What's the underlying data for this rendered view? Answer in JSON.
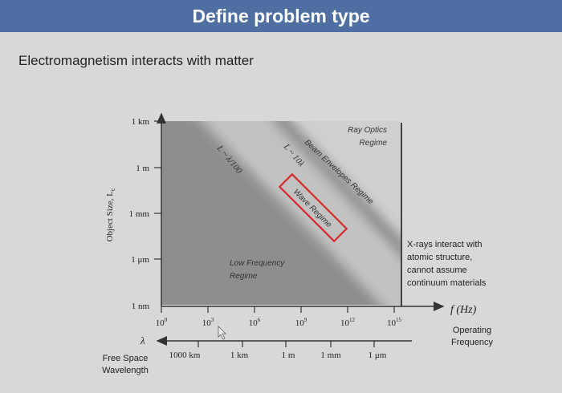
{
  "slide": {
    "title": "Define problem type",
    "subtitle": "Electromagnetism interacts with matter"
  },
  "diagram": {
    "y_axis_label": "Object Size, L",
    "y_axis_label_sub": "c",
    "y_ticks": [
      "1 km",
      "1 m",
      "1 mm",
      "1 μm",
      "1 nm"
    ],
    "x_ticks": [
      {
        "base": "10",
        "exp": "0"
      },
      {
        "base": "10",
        "exp": "3"
      },
      {
        "base": "10",
        "exp": "6"
      },
      {
        "base": "10",
        "exp": "9"
      },
      {
        "base": "10",
        "exp": "12"
      },
      {
        "base": "10",
        "exp": "15"
      }
    ],
    "x_axis_label": "f (Hz)",
    "operating_frequency": [
      "Operating",
      "Frequency"
    ],
    "wavelength_symbol": "λ",
    "wavelength_ticks": [
      "1000 km",
      "1 km",
      "1 m",
      "1 mm",
      "1 μm"
    ],
    "wavelength_label": [
      "Free Space",
      "Wavelength"
    ],
    "boundary_1": "L  ~ λ/100",
    "boundary_2": "L  ~ 10λ",
    "regimes": {
      "low_frequency": [
        "Low Frequency",
        "Regime"
      ],
      "wave": "Wave Regime",
      "beam": "Beam Envelopes Regime",
      "ray": [
        "Ray Optics",
        "Regime"
      ]
    },
    "xray_note": [
      "X-rays interact with",
      "atomic structure,",
      "cannot assume",
      "continuum materials"
    ],
    "colors": {
      "low_region": "#8e8e8e",
      "wave_region": "#c2c2c2",
      "beam_band": "#8a8a8a",
      "ray_region": "#d0d0d0",
      "wave_box": "#d42a2a"
    }
  }
}
